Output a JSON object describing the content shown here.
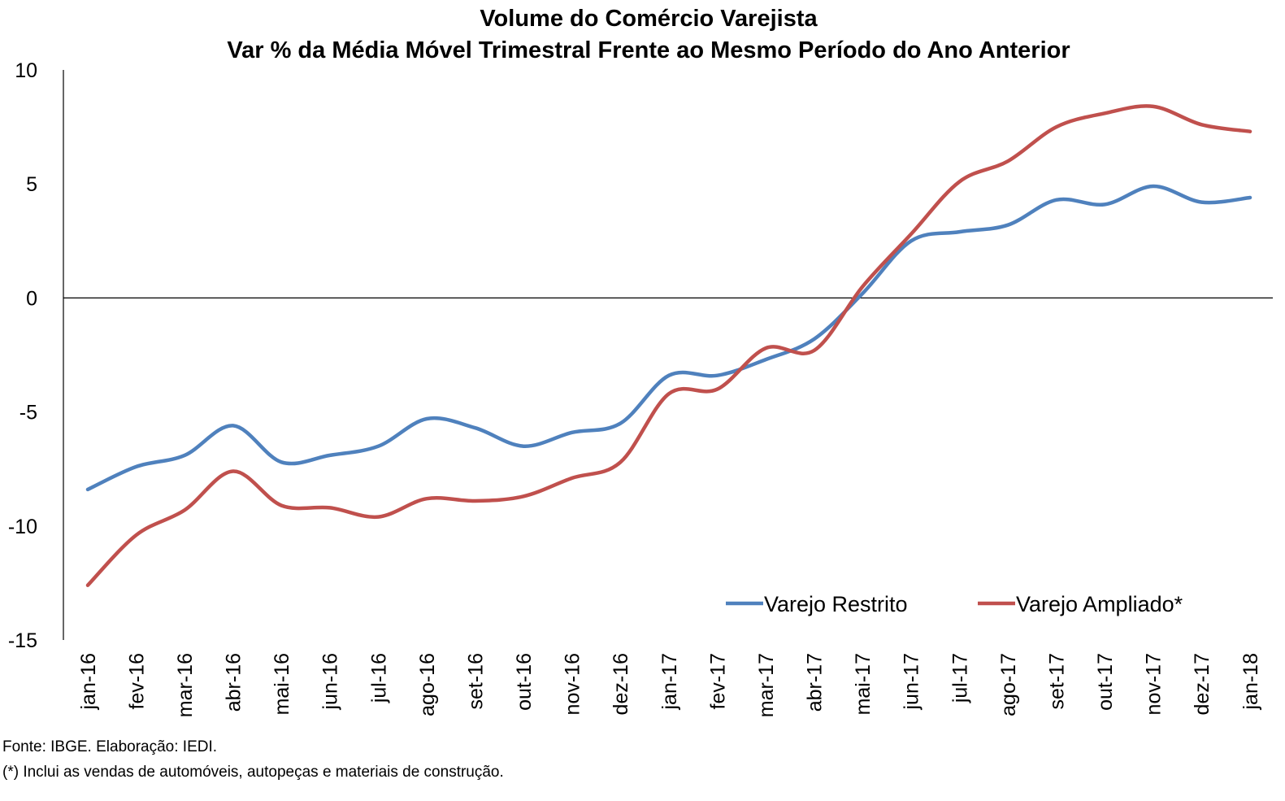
{
  "chart_data": {
    "type": "line",
    "title": "Volume do Comércio Varejista",
    "subtitle": "Var % da Média Móvel Trimestral Frente ao Mesmo Período do Ano Anterior",
    "xlabel": "",
    "ylabel": "",
    "ylim": [
      -15,
      10
    ],
    "yticks": [
      10,
      5,
      0,
      -5,
      -10,
      -15
    ],
    "categories": [
      "jan-16",
      "fev-16",
      "mar-16",
      "abr-16",
      "mai-16",
      "jun-16",
      "jul-16",
      "ago-16",
      "set-16",
      "out-16",
      "nov-16",
      "dez-16",
      "jan-17",
      "fev-17",
      "mar-17",
      "abr-17",
      "mai-17",
      "jun-17",
      "jul-17",
      "ago-17",
      "set-17",
      "out-17",
      "nov-17",
      "dez-17",
      "jan-18"
    ],
    "series": [
      {
        "name": "Varejo Restrito",
        "color": "#4F81BD",
        "values": [
          -8.4,
          -7.4,
          -6.9,
          -5.6,
          -7.2,
          -6.9,
          -6.5,
          -5.3,
          -5.7,
          -6.5,
          -5.9,
          -5.5,
          -3.4,
          -3.4,
          -2.7,
          -1.8,
          0.2,
          2.5,
          2.9,
          3.2,
          4.3,
          4.1,
          4.9,
          4.2,
          4.4
        ]
      },
      {
        "name": "Varejo Ampliado*",
        "color": "#C0504D",
        "values": [
          -12.6,
          -10.4,
          -9.3,
          -7.6,
          -9.1,
          -9.2,
          -9.6,
          -8.8,
          -8.9,
          -8.7,
          -7.9,
          -7.2,
          -4.2,
          -4.0,
          -2.2,
          -2.3,
          0.5,
          2.8,
          5.1,
          6.0,
          7.5,
          8.1,
          8.4,
          7.6,
          7.3
        ]
      }
    ],
    "legend": "bottom-right",
    "grid": false
  },
  "footnotes": {
    "source": "Fonte: IBGE. Elaboração: IEDI.",
    "note": "(*) Inclui as vendas de automóveis, autopeças e materiais de construção."
  }
}
